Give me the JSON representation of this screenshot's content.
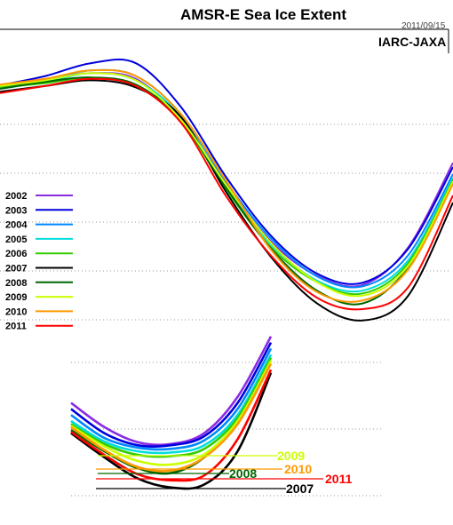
{
  "chart_data": [
    {
      "type": "line",
      "title": "AMSR-E Sea Ice Extent",
      "date": "2011/09/15",
      "organization": "IARC-JAXA",
      "xlabel": "",
      "ylabel": "",
      "grid": true,
      "legend_placement": "left",
      "series": [
        {
          "name": "2002",
          "color": "#8a2be2",
          "values": [
            0.05,
            0.14,
            0.22,
            0.14,
            -0.43,
            -1.36,
            -2.16,
            -2.63,
            -2.76,
            -2.24,
            -1.04
          ]
        },
        {
          "name": "2003",
          "color": "#0000dd",
          "values": [
            0.05,
            0.18,
            0.36,
            0.36,
            -0.26,
            -1.25,
            -2.08,
            -2.6,
            -2.73,
            -2.26,
            -1.1
          ]
        },
        {
          "name": "2004",
          "color": "#0088ff",
          "values": [
            0.02,
            0.12,
            0.26,
            0.18,
            -0.36,
            -1.32,
            -2.12,
            -2.64,
            -2.78,
            -2.35,
            -1.2
          ]
        },
        {
          "name": "2005",
          "color": "#00dddd",
          "values": [
            0.0,
            0.1,
            0.22,
            0.12,
            -0.4,
            -1.4,
            -2.2,
            -2.7,
            -2.84,
            -2.42,
            -1.25
          ]
        },
        {
          "name": "2006",
          "color": "#33cc00",
          "values": [
            0.02,
            0.08,
            0.16,
            0.04,
            -0.46,
            -1.42,
            -2.24,
            -2.72,
            -2.88,
            -2.46,
            -1.28
          ]
        },
        {
          "name": "2007",
          "color": "#000000",
          "values": [
            -0.04,
            0.04,
            0.12,
            0.02,
            -0.4,
            -1.46,
            -2.38,
            -3.02,
            -3.26,
            -2.92,
            -1.6
          ]
        },
        {
          "name": "2008",
          "color": "#006600",
          "values": [
            0.0,
            0.1,
            0.16,
            0.06,
            -0.45,
            -1.4,
            -2.26,
            -2.84,
            -3.02,
            -2.52,
            -1.3
          ]
        },
        {
          "name": "2009",
          "color": "#ccff00",
          "values": [
            0.04,
            0.12,
            0.22,
            0.12,
            -0.44,
            -1.36,
            -2.18,
            -2.72,
            -2.91,
            -2.5,
            -1.3
          ]
        },
        {
          "name": "2010",
          "color": "#ff9900",
          "values": [
            0.06,
            0.14,
            0.26,
            0.18,
            -0.36,
            -1.3,
            -2.28,
            -2.86,
            -2.98,
            -2.55,
            -1.34
          ]
        },
        {
          "name": "2011",
          "color": "#ff0000",
          "values": [
            -0.06,
            0.04,
            0.14,
            0.04,
            -0.48,
            -1.52,
            -2.36,
            -2.94,
            -3.1,
            -2.8,
            -1.5
          ]
        }
      ]
    },
    {
      "type": "line",
      "title": "",
      "annotations": [
        {
          "label": "2009",
          "color": "#ccff00"
        },
        {
          "label": "2010",
          "color": "#ff9900"
        },
        {
          "label": "2008",
          "color": "#006600"
        },
        {
          "label": "2011",
          "color": "#ff0000"
        },
        {
          "label": "2007",
          "color": "#000000"
        }
      ],
      "series": [
        {
          "name": "2002",
          "color": "#8a2be2",
          "values": [
            0.3,
            -0.1,
            -0.35,
            -0.38,
            -0.2,
            0.4,
            1.4
          ]
        },
        {
          "name": "2003",
          "color": "#0000dd",
          "values": [
            0.2,
            -0.2,
            -0.4,
            -0.4,
            -0.25,
            0.3,
            1.3
          ]
        },
        {
          "name": "2004",
          "color": "#0088ff",
          "values": [
            0.1,
            -0.28,
            -0.44,
            -0.46,
            -0.32,
            0.2,
            1.2
          ]
        },
        {
          "name": "2005",
          "color": "#00dddd",
          "values": [
            0.0,
            -0.34,
            -0.5,
            -0.52,
            -0.4,
            0.1,
            1.1
          ]
        },
        {
          "name": "2006",
          "color": "#33cc00",
          "values": [
            -0.05,
            -0.38,
            -0.56,
            -0.58,
            -0.46,
            0.05,
            1.05
          ]
        },
        {
          "name": "2007",
          "color": "#000000",
          "values": [
            -0.2,
            -0.6,
            -0.95,
            -1.1,
            -1.05,
            -0.5,
            0.8
          ]
        },
        {
          "name": "2008",
          "color": "#006600",
          "values": [
            -0.15,
            -0.5,
            -0.78,
            -0.86,
            -0.6,
            0.0,
            1.0
          ]
        },
        {
          "name": "2009",
          "color": "#ccff00",
          "values": [
            -0.08,
            -0.42,
            -0.66,
            -0.72,
            -0.55,
            0.0,
            1.0
          ]
        },
        {
          "name": "2010",
          "color": "#ff9900",
          "values": [
            -0.1,
            -0.48,
            -0.76,
            -0.82,
            -0.6,
            -0.05,
            0.95
          ]
        },
        {
          "name": "2011",
          "color": "#ff0000",
          "values": [
            -0.18,
            -0.56,
            -0.88,
            -0.98,
            -0.9,
            -0.3,
            0.85
          ]
        }
      ]
    }
  ]
}
